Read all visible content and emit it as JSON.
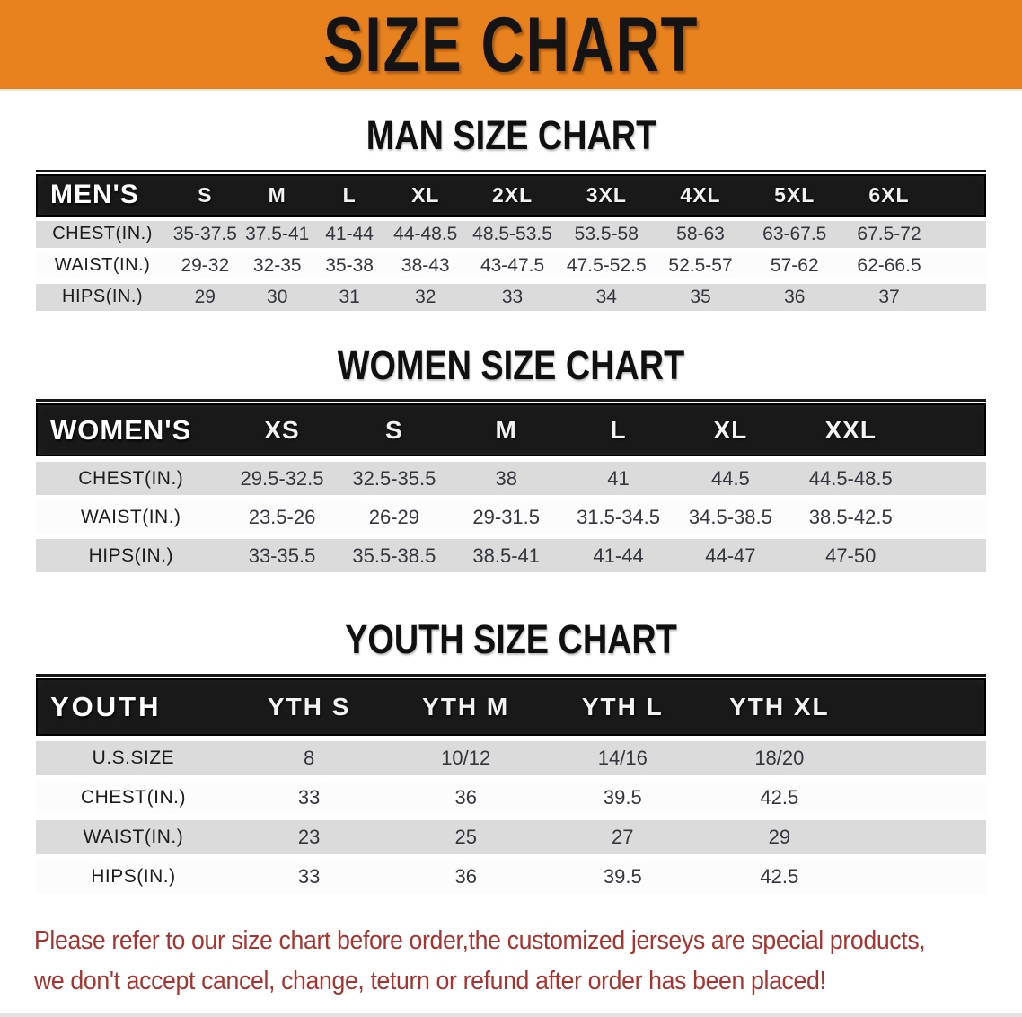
{
  "banner": {
    "title": "SIZE CHART",
    "bg_color": "#e8821f"
  },
  "sections": [
    {
      "id": "men",
      "heading": "MAN SIZE CHART",
      "header_label": "MEN'S",
      "columns": [
        "S",
        "M",
        "L",
        "XL",
        "2XL",
        "3XL",
        "4XL",
        "5XL",
        "6XL"
      ],
      "rows": [
        {
          "label": "CHEST(IN.)",
          "values": [
            "35-37.5",
            "37.5-41",
            "41-44",
            "44-48.5",
            "48.5-53.5",
            "53.5-58",
            "58-63",
            "63-67.5",
            "67.5-72"
          ]
        },
        {
          "label": "WAIST(IN.)",
          "values": [
            "29-32",
            "32-35",
            "35-38",
            "38-43",
            "43-47.5",
            "47.5-52.5",
            "52.5-57",
            "57-62",
            "62-66.5"
          ]
        },
        {
          "label": "HIPS(IN.)",
          "values": [
            "29",
            "30",
            "31",
            "32",
            "33",
            "34",
            "35",
            "36",
            "37"
          ]
        }
      ]
    },
    {
      "id": "women",
      "heading": "WOMEN SIZE CHART",
      "header_label": "WOMEN'S",
      "columns": [
        "XS",
        "S",
        "M",
        "L",
        "XL",
        "XXL"
      ],
      "rows": [
        {
          "label": "CHEST(IN.)",
          "values": [
            "29.5-32.5",
            "32.5-35.5",
            "38",
            "41",
            "44.5",
            "44.5-48.5"
          ]
        },
        {
          "label": "WAIST(IN.)",
          "values": [
            "23.5-26",
            "26-29",
            "29-31.5",
            "31.5-34.5",
            "34.5-38.5",
            "38.5-42.5"
          ]
        },
        {
          "label": "HIPS(IN.)",
          "values": [
            "33-35.5",
            "35.5-38.5",
            "38.5-41",
            "41-44",
            "44-47",
            "47-50"
          ]
        }
      ]
    },
    {
      "id": "youth",
      "heading": "YOUTH SIZE CHART",
      "header_label": "YOUTH",
      "columns": [
        "YTH S",
        "YTH M",
        "YTH L",
        "YTH XL"
      ],
      "rows": [
        {
          "label": "U.S.SIZE",
          "values": [
            "8",
            "10/12",
            "14/16",
            "18/20"
          ]
        },
        {
          "label": "CHEST(IN.)",
          "values": [
            "33",
            "36",
            "39.5",
            "42.5"
          ]
        },
        {
          "label": "WAIST(IN.)",
          "values": [
            "23",
            "25",
            "27",
            "29"
          ]
        },
        {
          "label": "HIPS(IN.)",
          "values": [
            "33",
            "36",
            "39.5",
            "42.5"
          ]
        }
      ]
    }
  ],
  "footer": {
    "line1": "Please refer to our size chart before order,the customized jerseys are special products,",
    "line2": "we don't accept cancel, change, teturn or refund after order has been placed!",
    "text_color": "#a8322d"
  },
  "colors": {
    "banner_bg": "#e8821f",
    "header_bar": "#191919",
    "stripe_gray": "#dbdbdb",
    "row_white": "#fcfcfc"
  }
}
